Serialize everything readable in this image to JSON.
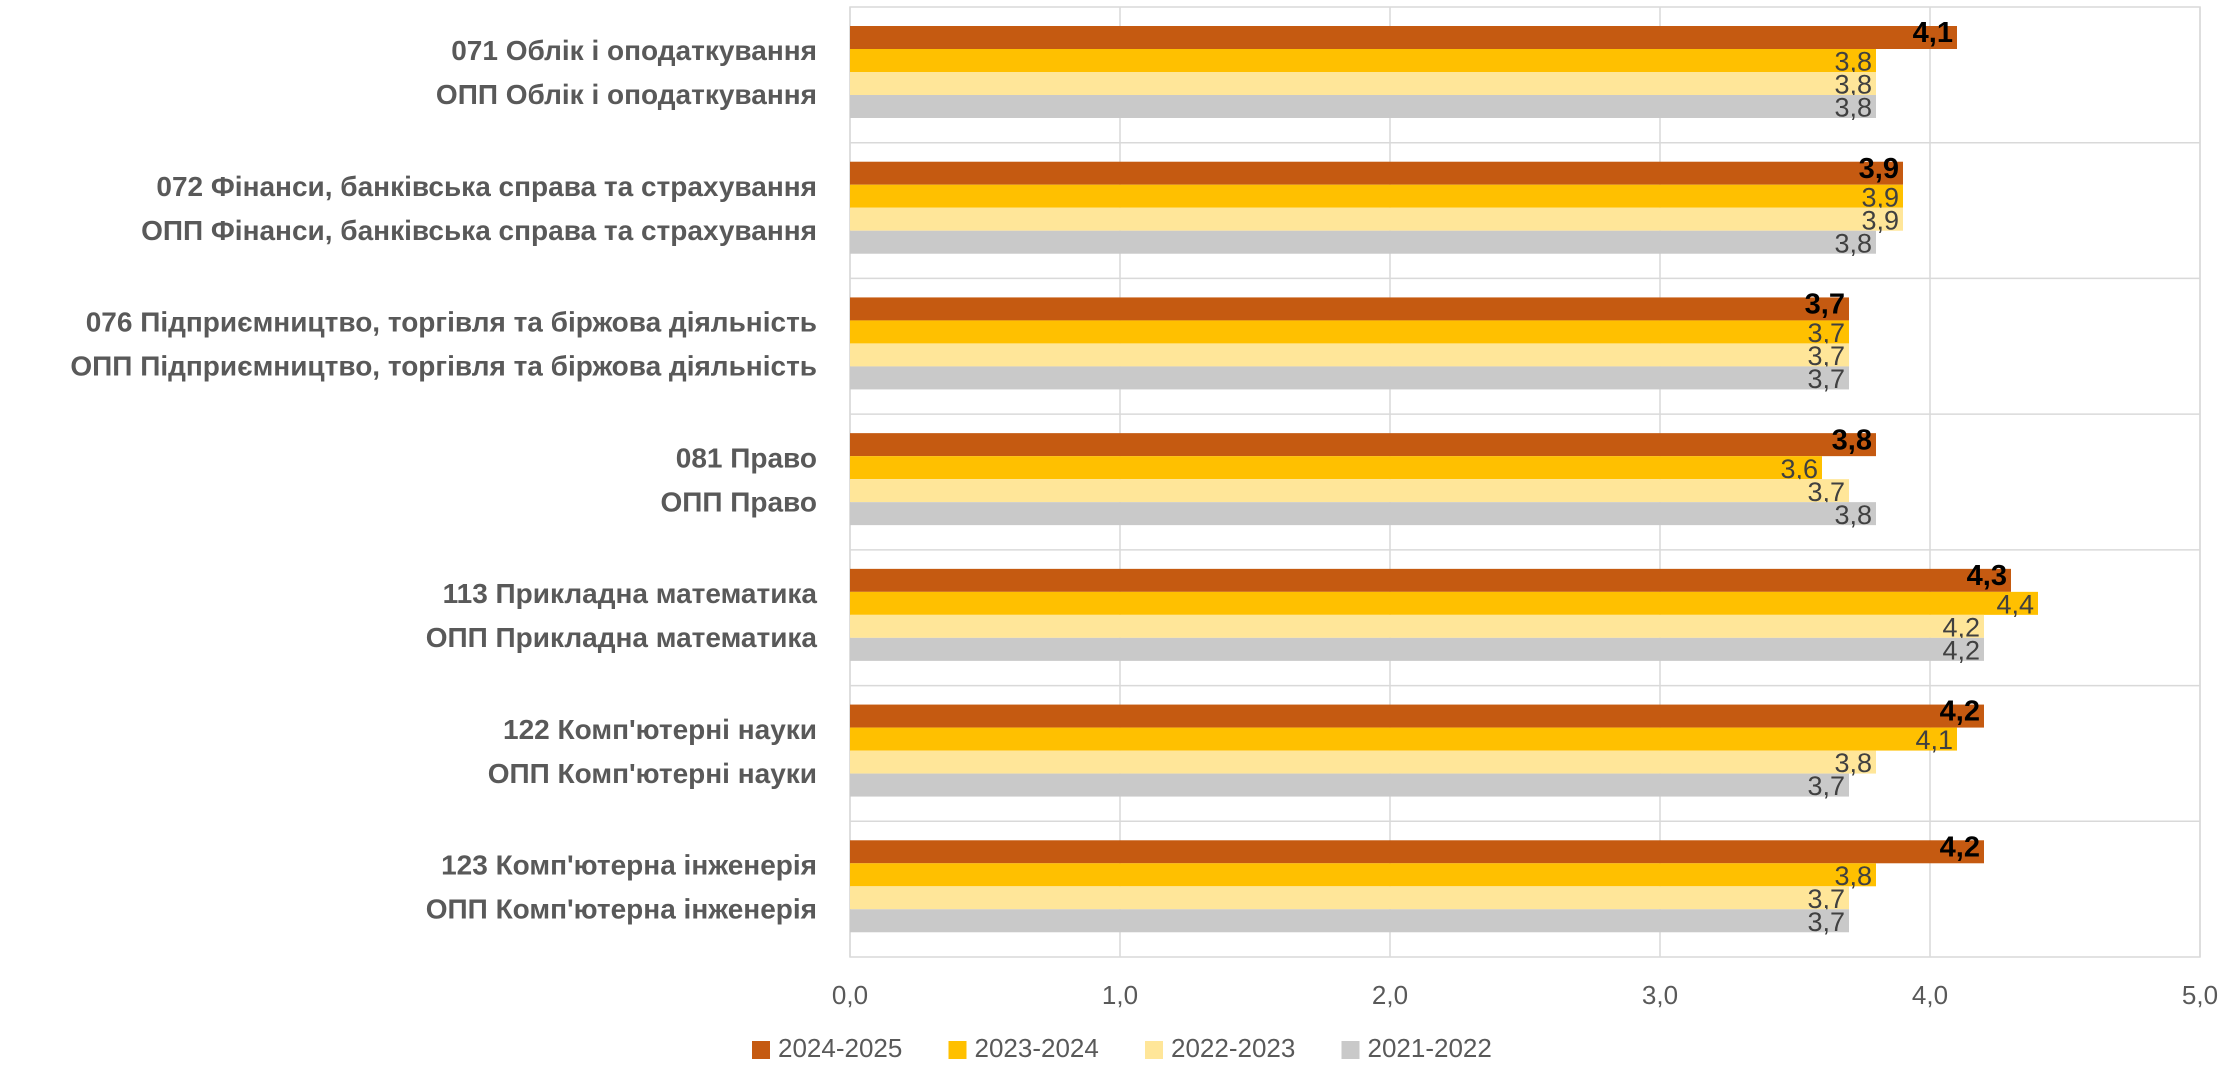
{
  "chart_data": {
    "type": "hbar",
    "categories": [
      [
        "071 Облік і оподаткування",
        "ОПП Облік і оподаткування"
      ],
      [
        "072 Фінанси, банківська справа та страхування",
        "ОПП Фінанси, банківська справа та страхування"
      ],
      [
        "076 Підприємництво, торгівля та біржова діяльність",
        "ОПП Підприємництво, торгівля та біржова діяльність"
      ],
      [
        "081 Право",
        "ОПП Право"
      ],
      [
        "113 Прикладна математика",
        "ОПП Прикладна математика"
      ],
      [
        "122 Комп'ютерні науки",
        "ОПП Комп'ютерні науки"
      ],
      [
        "123 Комп'ютерна інженерія",
        "ОПП Комп'ютерна інженерія"
      ]
    ],
    "series": [
      {
        "name": "2024-2025",
        "color": "#c55a11",
        "values": [
          4.1,
          3.9,
          3.7,
          3.8,
          4.3,
          4.2,
          4.2
        ],
        "value_labels": [
          "4,1",
          "3,9",
          "3,7",
          "3,8",
          "4,3",
          "4,2",
          "4,2"
        ]
      },
      {
        "name": "2023-2024",
        "color": "#ffc000",
        "values": [
          3.8,
          3.9,
          3.7,
          3.6,
          4.4,
          4.1,
          3.8
        ],
        "value_labels": [
          "3,8",
          "3,9",
          "3,7",
          "3,6",
          "4,4",
          "4,1",
          "3,8"
        ]
      },
      {
        "name": "2022-2023",
        "color": "#ffe699",
        "values": [
          3.8,
          3.9,
          3.7,
          3.7,
          4.2,
          3.8,
          3.7
        ],
        "value_labels": [
          "3,8",
          "3,9",
          "3,7",
          "3,7",
          "4,2",
          "3,8",
          "3,7"
        ]
      },
      {
        "name": "2021-2022",
        "color": "#c9c9c9",
        "values": [
          3.8,
          3.8,
          3.7,
          3.8,
          4.2,
          3.7,
          3.7
        ],
        "value_labels": [
          "3,8",
          "3,8",
          "3,7",
          "3,8",
          "4,2",
          "3,7",
          "3,7"
        ]
      }
    ],
    "xlim": [
      0,
      5
    ],
    "xticks": [
      {
        "value": 0,
        "label": "0,0"
      },
      {
        "value": 1,
        "label": "1,0"
      },
      {
        "value": 2,
        "label": "2,0"
      },
      {
        "value": 3,
        "label": "3,0"
      },
      {
        "value": 4,
        "label": "4,0"
      },
      {
        "value": 5,
        "label": "5,0"
      }
    ],
    "grid": true,
    "legend": "bottom"
  }
}
